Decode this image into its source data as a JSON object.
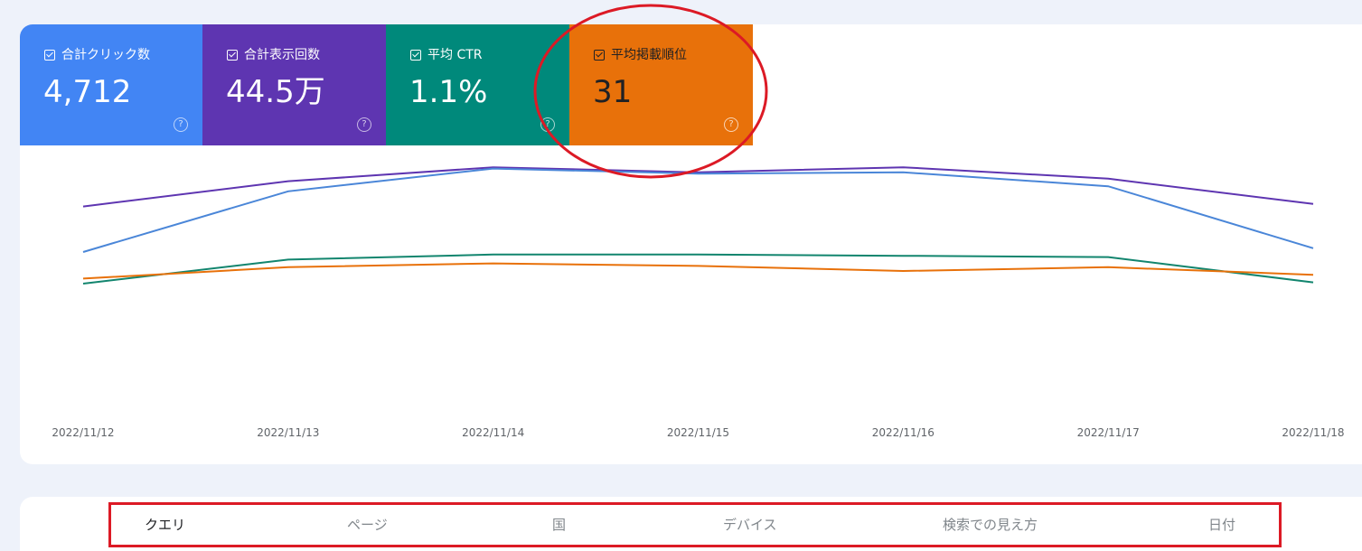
{
  "metrics": [
    {
      "label": "合計クリック数",
      "value": "4,712",
      "color": "#4285f4",
      "checked": true
    },
    {
      "label": "合計表示回数",
      "value": "44.5万",
      "color": "#5e35b1",
      "checked": true
    },
    {
      "label": "平均 CTR",
      "value": "1.1%",
      "color": "#00897b",
      "checked": true
    },
    {
      "label": "平均掲載順位",
      "value": "31",
      "color": "#e8710a",
      "checked": true
    }
  ],
  "help_icon": "?",
  "chart_data": {
    "type": "line",
    "x": [
      "2022/11/12",
      "2022/11/13",
      "2022/11/14",
      "2022/11/15",
      "2022/11/16",
      "2022/11/17",
      "2022/11/18"
    ],
    "series": [
      {
        "color": "#5e35b1",
        "values": [
          0.755,
          0.855,
          0.91,
          0.89,
          0.91,
          0.865,
          0.765
        ]
      },
      {
        "color": "#4a86d8",
        "values": [
          0.575,
          0.815,
          0.905,
          0.885,
          0.89,
          0.835,
          0.59
        ]
      },
      {
        "color": "#12856e",
        "values": [
          0.45,
          0.545,
          0.565,
          0.565,
          0.56,
          0.555,
          0.455
        ]
      },
      {
        "color": "#e8710a",
        "values": [
          0.47,
          0.515,
          0.53,
          0.52,
          0.5,
          0.515,
          0.485
        ]
      }
    ],
    "ylim": [
      0,
      1
    ],
    "grid": false,
    "legend": "none"
  },
  "tabs": [
    {
      "label": "クエリ",
      "active": true
    },
    {
      "label": "ページ",
      "active": false
    },
    {
      "label": "国",
      "active": false
    },
    {
      "label": "デバイス",
      "active": false
    },
    {
      "label": "検索での見え方",
      "active": false
    },
    {
      "label": "日付",
      "active": false
    }
  ],
  "annotation_color": "#dc1a25"
}
